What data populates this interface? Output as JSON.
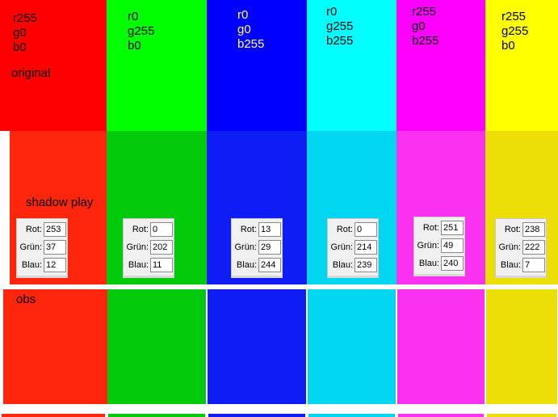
{
  "columns": [
    {
      "label_lines": [
        "r255",
        "g0",
        "b0"
      ],
      "original_color": "#ff0000",
      "shadow_play": {
        "rot": 253,
        "gruen": 37,
        "blau": 12
      }
    },
    {
      "label_lines": [
        "r0",
        "g255",
        "b0"
      ],
      "original_color": "#00ff00",
      "shadow_play": {
        "rot": 0,
        "gruen": 202,
        "blau": 11
      }
    },
    {
      "label_lines": [
        "r0",
        "g0",
        "b255"
      ],
      "original_color": "#0000ff",
      "shadow_play": {
        "rot": 13,
        "gruen": 29,
        "blau": 244
      }
    },
    {
      "label_lines": [
        "r0",
        "g255",
        "b255"
      ],
      "original_color": "#00ffff",
      "shadow_play": {
        "rot": 0,
        "gruen": 214,
        "blau": 239
      }
    },
    {
      "label_lines": [
        "r255",
        "g0",
        "b255"
      ],
      "original_color": "#ff00ff",
      "shadow_play": {
        "rot": 251,
        "gruen": 49,
        "blau": 240
      }
    },
    {
      "label_lines": [
        "r255",
        "g255",
        "b0"
      ],
      "original_color": "#ffff00",
      "shadow_play": {
        "rot": 238,
        "gruen": 222,
        "blau": 7
      }
    }
  ],
  "row_labels": {
    "original": "original",
    "shadow_play": "shadow play",
    "obs": "obs"
  },
  "field_labels": [
    "Rot:",
    "Grün:",
    "Blau:"
  ]
}
